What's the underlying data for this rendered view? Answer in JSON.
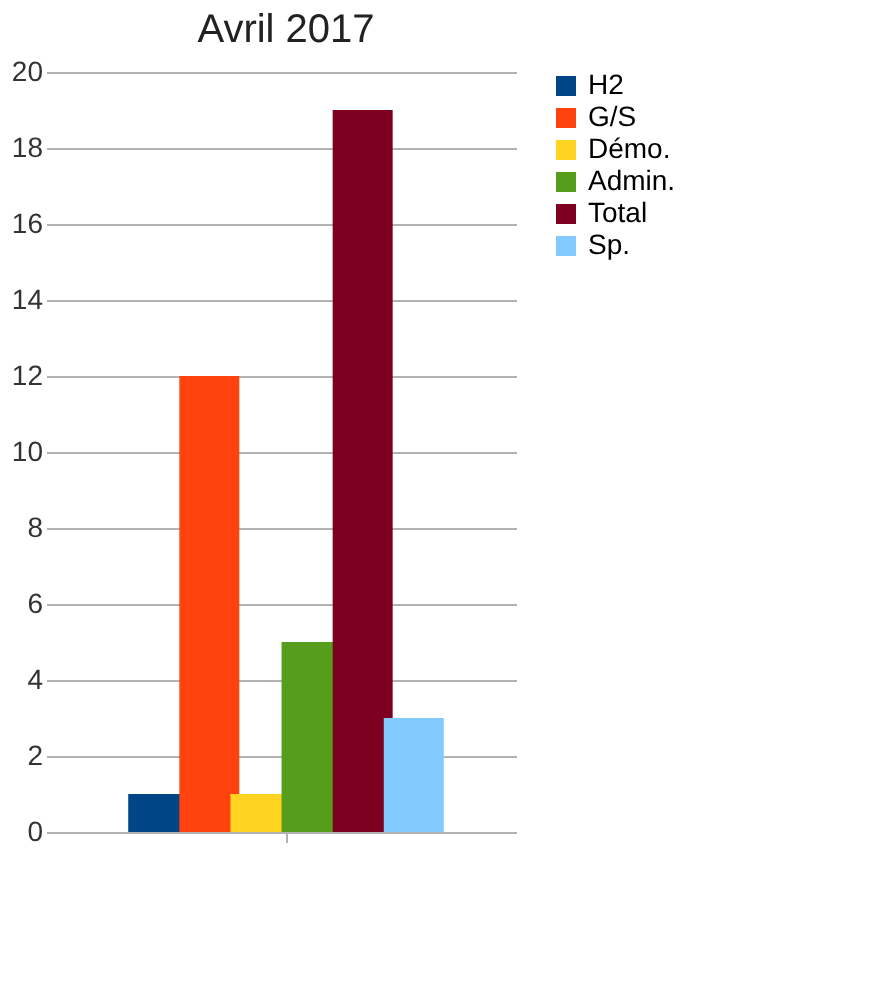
{
  "chart_data": {
    "type": "bar",
    "title": "Avril 2017",
    "categories": [
      null
    ],
    "series": [
      {
        "name": "H2",
        "color": "#004586",
        "values": [
          1
        ]
      },
      {
        "name": "G/S",
        "color": "#ff420e",
        "values": [
          12
        ]
      },
      {
        "name": "Démo.",
        "color": "#ffd320",
        "values": [
          1
        ]
      },
      {
        "name": "Admin.",
        "color": "#579d1c",
        "values": [
          5
        ]
      },
      {
        "name": "Total",
        "color": "#7e0021",
        "values": [
          19
        ]
      },
      {
        "name": "Sp.",
        "color": "#83caff",
        "values": [
          3
        ]
      }
    ],
    "ylim": [
      0,
      20
    ],
    "yticks": [
      0,
      2,
      4,
      6,
      8,
      10,
      12,
      14,
      16,
      18,
      20
    ],
    "grid": "y",
    "legend": "right"
  }
}
